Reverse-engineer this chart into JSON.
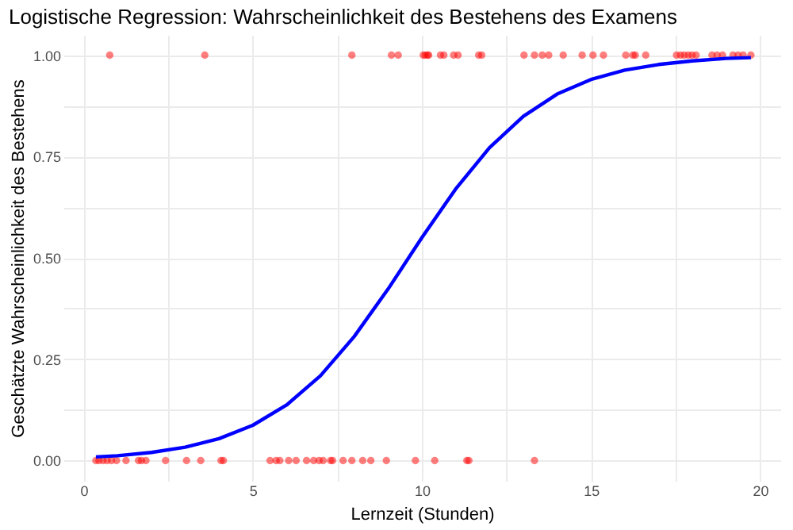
{
  "chart_data": {
    "type": "scatter",
    "title": "Logistische Regression: Wahrscheinlichkeit des Bestehens des Examens",
    "xlabel": "Lernzeit (Stunden)",
    "ylabel": "Geschätzte Wahrscheinlichkeit des Bestehens",
    "xlim": [
      -0.6,
      20.6
    ],
    "ylim": [
      -0.05,
      1.05
    ],
    "xticks": [
      0,
      {
        "value": 2.5,
        "label": null
      },
      5,
      {
        "value": 7.5,
        "label": null
      },
      10,
      {
        "value": 12.5,
        "label": null
      },
      15,
      {
        "value": 17.5,
        "label": null
      },
      20
    ],
    "yticks": [
      {
        "value": 0,
        "label": "0.00"
      },
      {
        "value": 0.125,
        "label": null
      },
      {
        "value": 0.25,
        "label": "0.25"
      },
      {
        "value": 0.375,
        "label": null
      },
      {
        "value": 0.5,
        "label": "0.50"
      },
      {
        "value": 0.625,
        "label": null
      },
      {
        "value": 0.75,
        "label": "0.75"
      },
      {
        "value": 0.875,
        "label": null
      },
      {
        "value": 1,
        "label": "1.00"
      }
    ],
    "grid": true,
    "legend": false,
    "series": [
      {
        "type": "scatter",
        "color": "#ff0000",
        "marker": "circle",
        "x": [
          0.77,
          3.58,
          7.93,
          9.1,
          9.3,
          10.04,
          10.17,
          10.1,
          10.2,
          10.55,
          10.65,
          10.94,
          11.07,
          11.68,
          11.77,
          13.02,
          13.33,
          13.56,
          13.75,
          14.18,
          14.74,
          15.06,
          15.37,
          16.03,
          16.24,
          16.31,
          16.62,
          17.53,
          17.65,
          17.76,
          17.88,
          17.99,
          18.11,
          18.58,
          18.73,
          18.89,
          19.2,
          19.35,
          19.5,
          19.73,
          0.36,
          0.45,
          0.57,
          0.69,
          0.82,
          0.97,
          1.25,
          1.62,
          1.71,
          1.84,
          2.42,
          3.04,
          3.46,
          4.06,
          4.13,
          5.51,
          5.69,
          5.8,
          6.06,
          6.28,
          6.59,
          6.8,
          6.96,
          7.08,
          7.3,
          7.36,
          7.67,
          7.93,
          8.25,
          8.49,
          8.95,
          9.81,
          10.38,
          11.33,
          11.39,
          13.33
        ],
        "values": [
          1,
          1,
          1,
          1,
          1,
          1,
          1,
          1,
          1,
          1,
          1,
          1,
          1,
          1,
          1,
          1,
          1,
          1,
          1,
          1,
          1,
          1,
          1,
          1,
          1,
          1,
          1,
          1,
          1,
          1,
          1,
          1,
          1,
          1,
          1,
          1,
          1,
          1,
          1,
          1,
          0,
          0,
          0,
          0,
          0,
          0,
          0,
          0,
          0,
          0,
          0,
          0,
          0,
          0,
          0,
          0,
          0,
          0,
          0,
          0,
          0,
          0,
          0,
          0,
          0,
          0,
          0,
          0,
          0,
          0,
          0,
          0,
          0,
          0,
          0,
          0
        ]
      },
      {
        "type": "line",
        "color": "#0000ff",
        "marker": "none",
        "line_style": "solid",
        "x": [
          0.36,
          1,
          2,
          3,
          4,
          5,
          6,
          7,
          8,
          9,
          10,
          11,
          12,
          13,
          14,
          15,
          16,
          17,
          18,
          19,
          19.73
        ],
        "values": [
          0.009,
          0.012,
          0.02,
          0.033,
          0.054,
          0.087,
          0.137,
          0.209,
          0.306,
          0.423,
          0.55,
          0.67,
          0.772,
          0.849,
          0.904,
          0.94,
          0.963,
          0.977,
          0.986,
          0.992,
          0.994
        ]
      }
    ]
  }
}
